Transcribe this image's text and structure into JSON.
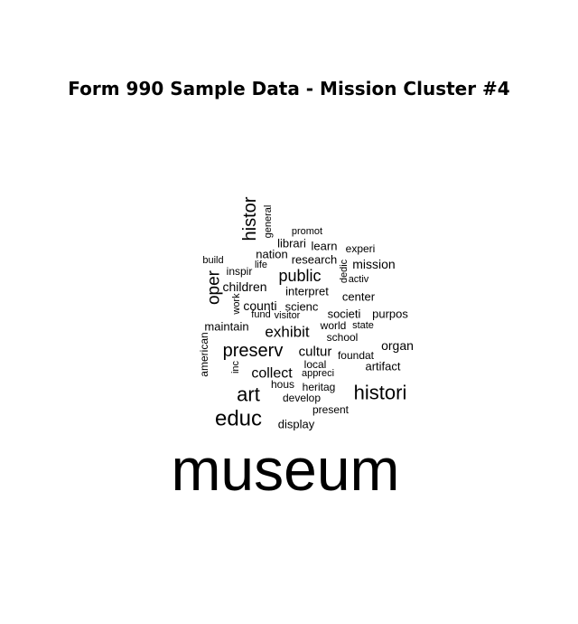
{
  "title": "Form 990 Sample Data - Mission Cluster #4",
  "chart_data": {
    "type": "wordcloud",
    "title": "Form 990 Sample Data - Mission Cluster #4",
    "text_color": "#000000",
    "words": [
      {
        "text": "museum",
        "weight": 100,
        "rotated": false
      },
      {
        "text": "educ",
        "weight": 30,
        "rotated": false
      },
      {
        "text": "histori",
        "weight": 26,
        "rotated": false
      },
      {
        "text": "art",
        "weight": 26,
        "rotated": false
      },
      {
        "text": "histor",
        "weight": 24,
        "rotated": true
      },
      {
        "text": "preserv",
        "weight": 23,
        "rotated": false
      },
      {
        "text": "oper",
        "weight": 21,
        "rotated": true
      },
      {
        "text": "public",
        "weight": 20,
        "rotated": false
      },
      {
        "text": "exhibit",
        "weight": 18,
        "rotated": false
      },
      {
        "text": "collect",
        "weight": 17,
        "rotated": false
      },
      {
        "text": "cultur",
        "weight": 15,
        "rotated": false
      },
      {
        "text": "organ",
        "weight": 14,
        "rotated": false
      },
      {
        "text": "mission",
        "weight": 13,
        "rotated": false
      },
      {
        "text": "children",
        "weight": 13,
        "rotated": false
      },
      {
        "text": "counti",
        "weight": 13,
        "rotated": false
      },
      {
        "text": "interpret",
        "weight": 12,
        "rotated": false
      },
      {
        "text": "scienc",
        "weight": 12,
        "rotated": false
      },
      {
        "text": "societi",
        "weight": 12,
        "rotated": false
      },
      {
        "text": "purpos",
        "weight": 12,
        "rotated": false
      },
      {
        "text": "artifact",
        "weight": 12,
        "rotated": false
      },
      {
        "text": "maintain",
        "weight": 12,
        "rotated": false
      },
      {
        "text": "nation",
        "weight": 12,
        "rotated": false
      },
      {
        "text": "learn",
        "weight": 12,
        "rotated": false
      },
      {
        "text": "center",
        "weight": 11,
        "rotated": false
      },
      {
        "text": "research",
        "weight": 11,
        "rotated": false
      },
      {
        "text": "librari",
        "weight": 11,
        "rotated": false
      },
      {
        "text": "display",
        "weight": 11,
        "rotated": false
      },
      {
        "text": "american",
        "weight": 10,
        "rotated": true
      },
      {
        "text": "school",
        "weight": 10,
        "rotated": false
      },
      {
        "text": "world",
        "weight": 10,
        "rotated": false
      },
      {
        "text": "foundat",
        "weight": 10,
        "rotated": false
      },
      {
        "text": "local",
        "weight": 10,
        "rotated": false
      },
      {
        "text": "experi",
        "weight": 10,
        "rotated": false
      },
      {
        "text": "heritag",
        "weight": 10,
        "rotated": false
      },
      {
        "text": "develop",
        "weight": 10,
        "rotated": false
      },
      {
        "text": "present",
        "weight": 10,
        "rotated": false
      },
      {
        "text": "hous",
        "weight": 10,
        "rotated": false
      },
      {
        "text": "inspir",
        "weight": 10,
        "rotated": false
      },
      {
        "text": "appreci",
        "weight": 9,
        "rotated": false
      },
      {
        "text": "build",
        "weight": 9,
        "rotated": false
      },
      {
        "text": "life",
        "weight": 9,
        "rotated": false
      },
      {
        "text": "promot",
        "weight": 9,
        "rotated": false
      },
      {
        "text": "activ",
        "weight": 9,
        "rotated": false
      },
      {
        "text": "dedic",
        "weight": 9,
        "rotated": true
      },
      {
        "text": "fund",
        "weight": 9,
        "rotated": false
      },
      {
        "text": "visitor",
        "weight": 9,
        "rotated": false
      },
      {
        "text": "state",
        "weight": 9,
        "rotated": false
      },
      {
        "text": "general",
        "weight": 8,
        "rotated": true
      },
      {
        "text": "work",
        "weight": 8,
        "rotated": true
      },
      {
        "text": "inc",
        "weight": 8,
        "rotated": true
      }
    ]
  }
}
